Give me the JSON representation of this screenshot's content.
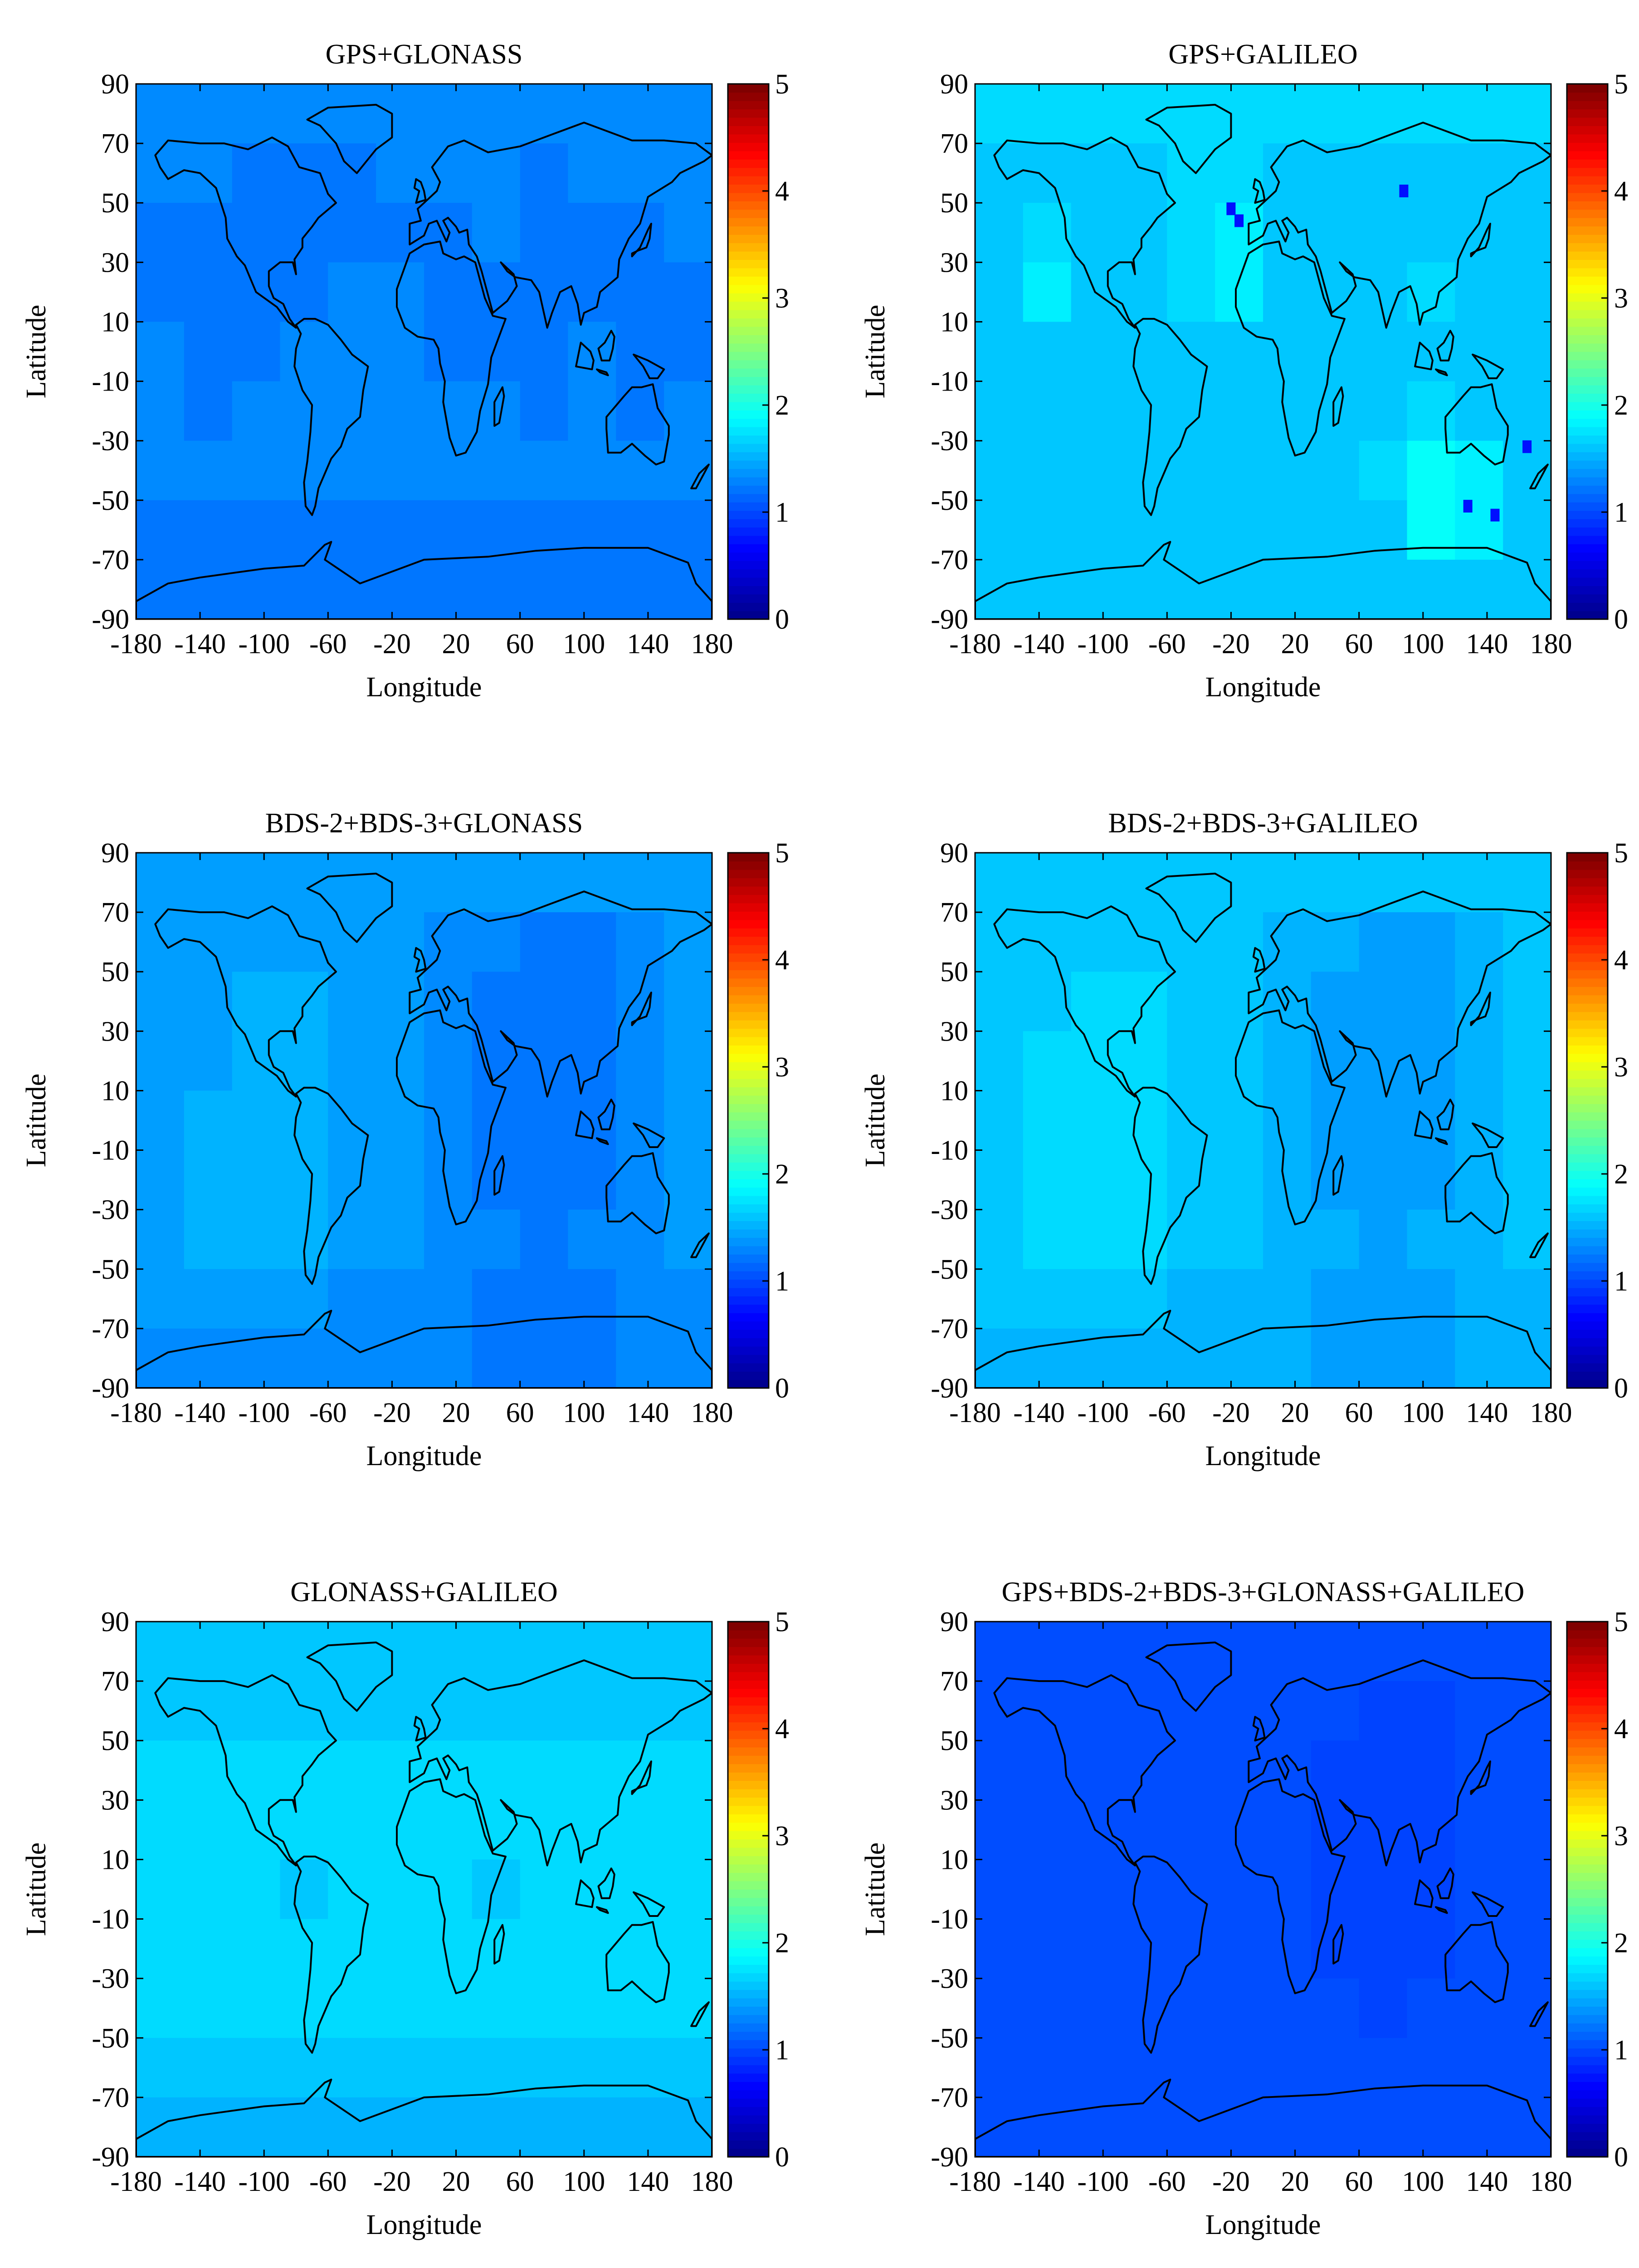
{
  "figure": {
    "colormap": "jet",
    "colormap_stops": [
      "#00008f",
      "#0000ff",
      "#0080ff",
      "#00ffff",
      "#80ff80",
      "#ffff00",
      "#ff8000",
      "#ff0000",
      "#800000"
    ],
    "background_color": "#ffffff",
    "axis_line_color": "#000000",
    "coastline_color": "#000000"
  },
  "chart_data": [
    {
      "type": "heatmap",
      "title": "GPS+GLONASS",
      "xlabel": "Longitude",
      "ylabel": "Latitude",
      "xticks": [
        "-180",
        "-140",
        "-100",
        "-60",
        "-20",
        "20",
        "60",
        "100",
        "140",
        "180"
      ],
      "yticks": [
        "90",
        "70",
        "50",
        "30",
        "10",
        "-10",
        "-30",
        "-50",
        "-70",
        "-90"
      ],
      "xlim": [
        -180,
        180
      ],
      "ylim": [
        -90,
        90
      ],
      "colorbar": {
        "ticks": [
          "0",
          "1",
          "2",
          "3",
          "4",
          "5"
        ],
        "range": [
          0,
          5
        ]
      },
      "grid": false,
      "value_rows_lat90_to_lat-90": [
        [
          1.3,
          1.3,
          1.3,
          1.3,
          1.3,
          1.3,
          1.3,
          1.3,
          1.3,
          1.3,
          1.3,
          1.3
        ],
        [
          1.3,
          1.3,
          1.2,
          1.2,
          1.2,
          1.3,
          1.3,
          1.3,
          1.2,
          1.3,
          1.3,
          1.3
        ],
        [
          1.2,
          1.2,
          1.2,
          1.2,
          1.2,
          1.2,
          1.2,
          1.3,
          1.2,
          1.2,
          1.2,
          1.3
        ],
        [
          1.2,
          1.2,
          1.2,
          1.2,
          1.3,
          1.3,
          1.2,
          1.2,
          1.2,
          1.2,
          1.2,
          1.2
        ],
        [
          1.3,
          1.2,
          1.2,
          1.3,
          1.3,
          1.3,
          1.2,
          1.2,
          1.2,
          1.3,
          1.2,
          1.2
        ],
        [
          1.3,
          1.2,
          1.3,
          1.3,
          1.3,
          1.3,
          1.3,
          1.3,
          1.2,
          1.3,
          1.2,
          1.3
        ],
        [
          1.3,
          1.3,
          1.3,
          1.3,
          1.3,
          1.3,
          1.3,
          1.3,
          1.3,
          1.3,
          1.3,
          1.3
        ],
        [
          1.2,
          1.2,
          1.2,
          1.2,
          1.2,
          1.2,
          1.2,
          1.2,
          1.2,
          1.2,
          1.2,
          1.2
        ],
        [
          1.2,
          1.2,
          1.2,
          1.2,
          1.2,
          1.2,
          1.2,
          1.2,
          1.2,
          1.2,
          1.2,
          1.2
        ]
      ]
    },
    {
      "type": "heatmap",
      "title": "GPS+GALILEO",
      "xlabel": "Longitude",
      "ylabel": "Latitude",
      "xticks": [
        "-180",
        "-140",
        "-100",
        "-60",
        "-20",
        "20",
        "60",
        "100",
        "140",
        "180"
      ],
      "yticks": [
        "90",
        "70",
        "50",
        "30",
        "10",
        "-10",
        "-30",
        "-50",
        "-70",
        "-90"
      ],
      "xlim": [
        -180,
        180
      ],
      "ylim": [
        -90,
        90
      ],
      "colorbar": {
        "ticks": [
          "0",
          "1",
          "2",
          "3",
          "4",
          "5"
        ],
        "range": [
          0,
          5
        ]
      },
      "grid": false,
      "value_rows_lat90_to_lat-90": [
        [
          1.7,
          1.7,
          1.7,
          1.7,
          1.7,
          1.7,
          1.7,
          1.7,
          1.7,
          1.7,
          1.7,
          1.7
        ],
        [
          1.6,
          1.6,
          1.6,
          1.6,
          1.7,
          1.7,
          1.6,
          1.6,
          1.6,
          1.6,
          1.6,
          1.6
        ],
        [
          1.6,
          1.7,
          1.6,
          1.6,
          1.7,
          1.8,
          1.6,
          1.6,
          1.6,
          1.6,
          1.6,
          1.6
        ],
        [
          1.6,
          1.8,
          1.6,
          1.6,
          1.7,
          1.8,
          1.6,
          1.6,
          1.6,
          1.7,
          1.6,
          1.6
        ],
        [
          1.6,
          1.6,
          1.6,
          1.6,
          1.6,
          1.6,
          1.6,
          1.6,
          1.6,
          1.6,
          1.6,
          1.6
        ],
        [
          1.6,
          1.6,
          1.6,
          1.6,
          1.6,
          1.6,
          1.6,
          1.6,
          1.6,
          1.7,
          1.6,
          1.6
        ],
        [
          1.6,
          1.6,
          1.6,
          1.6,
          1.6,
          1.6,
          1.6,
          1.6,
          1.7,
          1.9,
          1.8,
          1.6
        ],
        [
          1.6,
          1.6,
          1.6,
          1.6,
          1.6,
          1.6,
          1.6,
          1.6,
          1.6,
          1.9,
          1.8,
          1.6
        ],
        [
          1.6,
          1.6,
          1.6,
          1.6,
          1.6,
          1.6,
          1.6,
          1.6,
          1.6,
          1.6,
          1.6,
          1.6
        ]
      ],
      "outliers": [
        {
          "lon": -20,
          "lat": 48,
          "value": 0.7
        },
        {
          "lon": -15,
          "lat": 44,
          "value": 0.7
        },
        {
          "lon": 88,
          "lat": 54,
          "value": 0.7
        },
        {
          "lon": 165,
          "lat": -32,
          "value": 0.7
        },
        {
          "lon": 128,
          "lat": -52,
          "value": 0.7
        },
        {
          "lon": 145,
          "lat": -55,
          "value": 0.7
        }
      ]
    },
    {
      "type": "heatmap",
      "title": "BDS-2+BDS-3+GLONASS",
      "xlabel": "Longitude",
      "ylabel": "Latitude",
      "xticks": [
        "-180",
        "-140",
        "-100",
        "-60",
        "-20",
        "20",
        "60",
        "100",
        "140",
        "180"
      ],
      "yticks": [
        "90",
        "70",
        "50",
        "30",
        "10",
        "-10",
        "-30",
        "-50",
        "-70",
        "-90"
      ],
      "xlim": [
        -180,
        180
      ],
      "ylim": [
        -90,
        90
      ],
      "colorbar": {
        "ticks": [
          "0",
          "1",
          "2",
          "3",
          "4",
          "5"
        ],
        "range": [
          0,
          5
        ]
      },
      "grid": false,
      "value_rows_lat90_to_lat-90": [
        [
          1.4,
          1.4,
          1.4,
          1.4,
          1.4,
          1.4,
          1.4,
          1.4,
          1.4,
          1.4,
          1.4,
          1.4
        ],
        [
          1.4,
          1.4,
          1.4,
          1.4,
          1.4,
          1.4,
          1.3,
          1.3,
          1.2,
          1.2,
          1.3,
          1.4
        ],
        [
          1.4,
          1.4,
          1.5,
          1.5,
          1.4,
          1.4,
          1.3,
          1.2,
          1.2,
          1.2,
          1.3,
          1.4
        ],
        [
          1.4,
          1.4,
          1.5,
          1.5,
          1.4,
          1.4,
          1.3,
          1.2,
          1.2,
          1.2,
          1.3,
          1.4
        ],
        [
          1.4,
          1.5,
          1.5,
          1.5,
          1.4,
          1.4,
          1.3,
          1.2,
          1.2,
          1.2,
          1.3,
          1.4
        ],
        [
          1.4,
          1.5,
          1.5,
          1.5,
          1.4,
          1.4,
          1.3,
          1.2,
          1.2,
          1.2,
          1.3,
          1.4
        ],
        [
          1.4,
          1.5,
          1.5,
          1.5,
          1.4,
          1.4,
          1.3,
          1.3,
          1.2,
          1.3,
          1.3,
          1.4
        ],
        [
          1.4,
          1.4,
          1.4,
          1.4,
          1.3,
          1.3,
          1.3,
          1.2,
          1.2,
          1.2,
          1.3,
          1.3
        ],
        [
          1.3,
          1.3,
          1.3,
          1.3,
          1.3,
          1.3,
          1.3,
          1.2,
          1.2,
          1.2,
          1.3,
          1.3
        ]
      ]
    },
    {
      "type": "heatmap",
      "title": "BDS-2+BDS-3+GALILEO",
      "xlabel": "Longitude",
      "ylabel": "Latitude",
      "xticks": [
        "-180",
        "-140",
        "-100",
        "-60",
        "-20",
        "20",
        "60",
        "100",
        "140",
        "180"
      ],
      "yticks": [
        "90",
        "70",
        "50",
        "30",
        "10",
        "-10",
        "-30",
        "-50",
        "-70",
        "-90"
      ],
      "xlim": [
        -180,
        180
      ],
      "ylim": [
        -90,
        90
      ],
      "colorbar": {
        "ticks": [
          "0",
          "1",
          "2",
          "3",
          "4",
          "5"
        ],
        "range": [
          0,
          5
        ]
      },
      "grid": false,
      "value_rows_lat90_to_lat-90": [
        [
          1.6,
          1.6,
          1.6,
          1.6,
          1.6,
          1.6,
          1.6,
          1.6,
          1.6,
          1.6,
          1.6,
          1.6
        ],
        [
          1.6,
          1.6,
          1.6,
          1.6,
          1.6,
          1.6,
          1.5,
          1.5,
          1.4,
          1.4,
          1.5,
          1.6
        ],
        [
          1.6,
          1.6,
          1.7,
          1.7,
          1.6,
          1.6,
          1.5,
          1.4,
          1.4,
          1.4,
          1.5,
          1.6
        ],
        [
          1.6,
          1.7,
          1.7,
          1.7,
          1.6,
          1.6,
          1.5,
          1.4,
          1.4,
          1.4,
          1.5,
          1.6
        ],
        [
          1.6,
          1.7,
          1.7,
          1.7,
          1.6,
          1.6,
          1.5,
          1.4,
          1.4,
          1.4,
          1.5,
          1.6
        ],
        [
          1.6,
          1.7,
          1.7,
          1.7,
          1.6,
          1.6,
          1.5,
          1.4,
          1.4,
          1.4,
          1.5,
          1.6
        ],
        [
          1.6,
          1.7,
          1.7,
          1.7,
          1.6,
          1.6,
          1.5,
          1.5,
          1.4,
          1.5,
          1.5,
          1.6
        ],
        [
          1.6,
          1.6,
          1.6,
          1.6,
          1.5,
          1.5,
          1.5,
          1.4,
          1.4,
          1.4,
          1.5,
          1.5
        ],
        [
          1.5,
          1.5,
          1.5,
          1.5,
          1.5,
          1.5,
          1.5,
          1.4,
          1.4,
          1.4,
          1.5,
          1.5
        ]
      ]
    },
    {
      "type": "heatmap",
      "title": "GLONASS+GALILEO",
      "xlabel": "Longitude",
      "ylabel": "Latitude",
      "xticks": [
        "-180",
        "-140",
        "-100",
        "-60",
        "-20",
        "20",
        "60",
        "100",
        "140",
        "180"
      ],
      "yticks": [
        "90",
        "70",
        "50",
        "30",
        "10",
        "-10",
        "-30",
        "-50",
        "-70",
        "-90"
      ],
      "xlim": [
        -180,
        180
      ],
      "ylim": [
        -90,
        90
      ],
      "colorbar": {
        "ticks": [
          "0",
          "1",
          "2",
          "3",
          "4",
          "5"
        ],
        "range": [
          0,
          5
        ]
      },
      "grid": false,
      "value_rows_lat90_to_lat-90": [
        [
          1.6,
          1.6,
          1.6,
          1.6,
          1.6,
          1.6,
          1.6,
          1.6,
          1.6,
          1.6,
          1.6,
          1.6
        ],
        [
          1.6,
          1.6,
          1.6,
          1.6,
          1.6,
          1.6,
          1.6,
          1.6,
          1.6,
          1.6,
          1.6,
          1.6
        ],
        [
          1.7,
          1.7,
          1.7,
          1.7,
          1.7,
          1.7,
          1.7,
          1.7,
          1.7,
          1.7,
          1.7,
          1.7
        ],
        [
          1.7,
          1.7,
          1.7,
          1.7,
          1.7,
          1.7,
          1.7,
          1.7,
          1.7,
          1.7,
          1.7,
          1.7
        ],
        [
          1.7,
          1.7,
          1.7,
          1.6,
          1.7,
          1.7,
          1.7,
          1.6,
          1.7,
          1.7,
          1.7,
          1.7
        ],
        [
          1.7,
          1.7,
          1.7,
          1.7,
          1.7,
          1.7,
          1.7,
          1.7,
          1.7,
          1.7,
          1.7,
          1.7
        ],
        [
          1.7,
          1.7,
          1.7,
          1.7,
          1.7,
          1.7,
          1.7,
          1.7,
          1.7,
          1.7,
          1.7,
          1.7
        ],
        [
          1.6,
          1.6,
          1.6,
          1.6,
          1.6,
          1.6,
          1.6,
          1.6,
          1.6,
          1.6,
          1.6,
          1.6
        ],
        [
          1.5,
          1.5,
          1.5,
          1.5,
          1.5,
          1.5,
          1.5,
          1.5,
          1.5,
          1.5,
          1.5,
          1.5
        ]
      ]
    },
    {
      "type": "heatmap",
      "title": "GPS+BDS-2+BDS-3+GLONASS+GALILEO",
      "xlabel": "Longitude",
      "ylabel": "Latitude",
      "xticks": [
        "-180",
        "-140",
        "-100",
        "-60",
        "-20",
        "20",
        "60",
        "100",
        "140",
        "180"
      ],
      "yticks": [
        "90",
        "70",
        "50",
        "30",
        "10",
        "-10",
        "-30",
        "-50",
        "-70",
        "-90"
      ],
      "xlim": [
        -180,
        180
      ],
      "ylim": [
        -90,
        90
      ],
      "colorbar": {
        "ticks": [
          "0",
          "1",
          "2",
          "3",
          "4",
          "5"
        ],
        "range": [
          0,
          5
        ]
      },
      "grid": false,
      "value_rows_lat90_to_lat-90": [
        [
          1.0,
          1.0,
          1.0,
          1.0,
          1.0,
          1.0,
          1.0,
          1.0,
          1.0,
          1.0,
          1.0,
          1.0
        ],
        [
          1.0,
          1.0,
          1.0,
          1.0,
          1.0,
          1.0,
          1.0,
          1.0,
          0.95,
          0.95,
          1.0,
          1.0
        ],
        [
          1.0,
          1.0,
          1.0,
          1.0,
          1.0,
          1.0,
          1.0,
          0.95,
          0.95,
          0.95,
          1.0,
          1.0
        ],
        [
          1.0,
          1.0,
          1.0,
          1.0,
          1.0,
          1.0,
          1.0,
          0.95,
          0.95,
          0.95,
          1.0,
          1.0
        ],
        [
          1.0,
          1.0,
          1.0,
          1.0,
          1.0,
          1.0,
          1.0,
          0.95,
          0.95,
          0.95,
          1.0,
          1.0
        ],
        [
          1.0,
          1.0,
          1.0,
          1.0,
          1.0,
          1.0,
          1.0,
          0.95,
          0.95,
          0.95,
          1.0,
          1.0
        ],
        [
          1.0,
          1.0,
          1.0,
          1.0,
          1.0,
          1.0,
          1.0,
          1.0,
          0.95,
          1.0,
          1.0,
          1.0
        ],
        [
          1.0,
          1.0,
          1.0,
          1.0,
          1.0,
          1.0,
          1.0,
          1.0,
          1.0,
          1.0,
          1.0,
          1.0
        ],
        [
          1.0,
          1.0,
          1.0,
          1.0,
          1.0,
          1.0,
          1.0,
          1.0,
          1.0,
          1.0,
          1.0,
          1.0
        ]
      ]
    }
  ]
}
